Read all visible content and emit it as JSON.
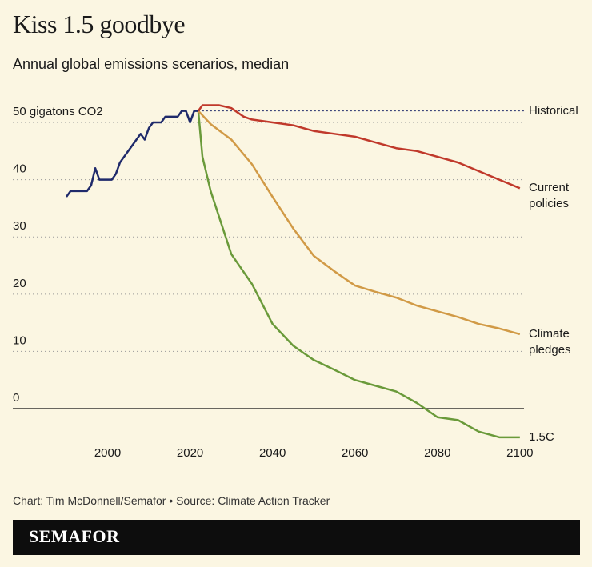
{
  "header": {
    "title": "Kiss 1.5 goodbye",
    "subtitle": "Annual global emissions scenarios, median"
  },
  "chart_data": {
    "type": "line",
    "xlim": [
      1977,
      2101
    ],
    "ylim": [
      -6,
      53
    ],
    "xticks": [
      2000,
      2020,
      2040,
      2060,
      2080,
      2100
    ],
    "yticks": [
      0,
      10,
      20,
      30,
      40,
      {
        "value": 50,
        "label": "50 gigatons CO2"
      }
    ],
    "grid": true,
    "series": [
      {
        "name": "Historical",
        "color": "#1f2a6b",
        "x": [
          1990,
          1991,
          1992,
          1993,
          1994,
          1995,
          1996,
          1997,
          1998,
          1999,
          2000,
          2001,
          2002,
          2003,
          2004,
          2005,
          2006,
          2007,
          2008,
          2009,
          2010,
          2011,
          2012,
          2013,
          2014,
          2015,
          2016,
          2017,
          2018,
          2019,
          2020,
          2021,
          2022
        ],
        "values": [
          37,
          38,
          38,
          38,
          38,
          38,
          39,
          42,
          40,
          40,
          40,
          40,
          41,
          43,
          44,
          45,
          46,
          47,
          48,
          47,
          49,
          50,
          50,
          50,
          51,
          51,
          51,
          51,
          52,
          52,
          50,
          52,
          52
        ]
      },
      {
        "name": "Current policies",
        "color": "#c0392b",
        "x": [
          2022,
          2023,
          2025,
          2027,
          2030,
          2033,
          2035,
          2040,
          2045,
          2050,
          2055,
          2060,
          2065,
          2070,
          2075,
          2080,
          2085,
          2090,
          2095,
          2100
        ],
        "values": [
          52,
          53,
          53,
          53,
          52.5,
          51,
          50.5,
          50,
          49.5,
          48.5,
          48,
          47.5,
          46.5,
          45.5,
          45,
          44,
          43,
          41.5,
          40,
          38.5
        ]
      },
      {
        "name": "Climate pledges",
        "color": "#d19a46",
        "x": [
          2022,
          2025,
          2030,
          2035,
          2040,
          2045,
          2050,
          2055,
          2060,
          2065,
          2070,
          2075,
          2080,
          2085,
          2090,
          2095,
          2100
        ],
        "values": [
          52,
          49.7,
          47,
          42.7,
          37,
          31.5,
          26.7,
          24,
          21.5,
          20.4,
          19.4,
          18,
          17,
          16,
          14.8,
          14,
          13
        ]
      },
      {
        "name": "1.5C",
        "color": "#6a9a3a",
        "x": [
          2022,
          2023,
          2025,
          2030,
          2035,
          2040,
          2045,
          2050,
          2055,
          2060,
          2065,
          2070,
          2075,
          2080,
          2085,
          2090,
          2095,
          2100
        ],
        "values": [
          52,
          44,
          38,
          27,
          21.8,
          14.8,
          11,
          8.5,
          6.8,
          5,
          4,
          3,
          1,
          -1.5,
          -2,
          -4,
          -5,
          -5
        ]
      }
    ]
  },
  "footer": {
    "source": "Chart: Tim McDonnell/Semafor • Source: Climate Action Tracker",
    "brand": "SEMAFOR"
  }
}
